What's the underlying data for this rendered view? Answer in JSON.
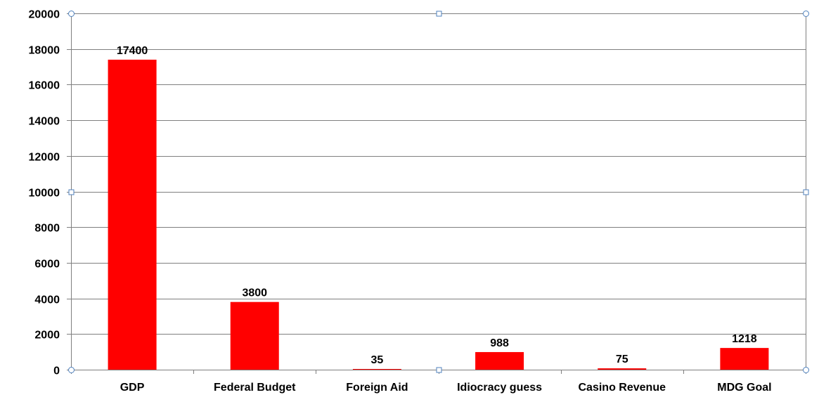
{
  "chart_data": {
    "type": "bar",
    "categories": [
      "GDP",
      "Federal Budget",
      "Foreign Aid",
      "Idiocracy guess",
      "Casino Revenue",
      "MDG Goal"
    ],
    "values": [
      17400,
      3800,
      35,
      988,
      75,
      1218
    ],
    "data_labels": [
      "17400",
      "3800",
      "35",
      "988",
      "75",
      "1218"
    ],
    "title": "",
    "xlabel": "",
    "ylabel": "",
    "ylim": [
      0,
      20000
    ],
    "yticks": [
      0,
      2000,
      4000,
      6000,
      8000,
      10000,
      12000,
      14000,
      16000,
      18000,
      20000
    ],
    "ytick_labels": [
      "0",
      "2000",
      "4000",
      "6000",
      "8000",
      "10000",
      "12000",
      "14000",
      "16000",
      "18000",
      "20000"
    ],
    "grid": true,
    "legend": "none",
    "bar_color": "#ff0000",
    "gridline_color": "#7f7f7f",
    "selection_handle_color": "#4f81bd"
  }
}
